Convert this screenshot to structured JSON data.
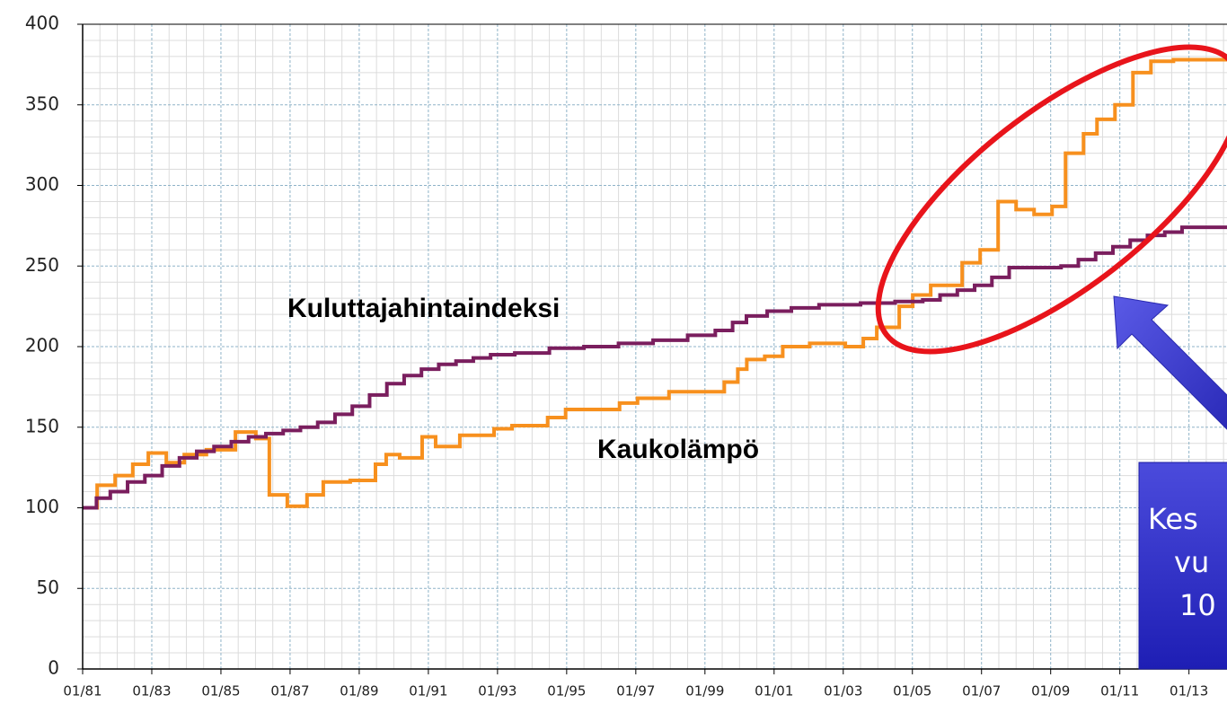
{
  "chart_data": {
    "type": "step-line",
    "xlim": [
      1981,
      2014.1
    ],
    "xticks": [
      {
        "value": 1981,
        "label": "01/81"
      },
      {
        "value": 1983,
        "label": "01/83"
      },
      {
        "value": 1985,
        "label": "01/85"
      },
      {
        "value": 1987,
        "label": "01/87"
      },
      {
        "value": 1989,
        "label": "01/89"
      },
      {
        "value": 1991,
        "label": "01/91"
      },
      {
        "value": 1993,
        "label": "01/93"
      },
      {
        "value": 1995,
        "label": "01/95"
      },
      {
        "value": 1997,
        "label": "01/97"
      },
      {
        "value": 1999,
        "label": "01/99"
      },
      {
        "value": 2001,
        "label": "01/01"
      },
      {
        "value": 2003,
        "label": "01/03"
      },
      {
        "value": 2005,
        "label": "01/05"
      },
      {
        "value": 2007,
        "label": "01/07"
      },
      {
        "value": 2009,
        "label": "01/09"
      },
      {
        "value": 2011,
        "label": "01/11"
      },
      {
        "value": 2013,
        "label": "01/13"
      }
    ],
    "ylim": [
      0,
      400
    ],
    "yticks": [
      0,
      50,
      100,
      150,
      200,
      250,
      300,
      350,
      400
    ],
    "grid": true,
    "series": [
      {
        "name": "Kuluttajahintaindeksi",
        "color": "#7a1e5e",
        "x": [
          1981.0,
          1981.4,
          1981.8,
          1982.3,
          1982.8,
          1983.3,
          1983.8,
          1984.3,
          1984.8,
          1985.3,
          1985.8,
          1986.3,
          1986.8,
          1987.3,
          1987.8,
          1988.3,
          1988.8,
          1989.3,
          1989.8,
          1990.3,
          1990.8,
          1991.3,
          1991.8,
          1992.3,
          1992.8,
          1993.5,
          1994.5,
          1995.5,
          1996.5,
          1997.5,
          1998.5,
          1999.3,
          1999.8,
          2000.2,
          2000.8,
          2001.5,
          2002.3,
          2003.5,
          2004.5,
          2005.3,
          2005.8,
          2006.3,
          2006.8,
          2007.3,
          2007.8,
          2008.5,
          2009.3,
          2009.8,
          2010.3,
          2010.8,
          2011.3,
          2011.8,
          2012.3,
          2012.8
        ],
        "values": [
          100,
          106,
          110,
          116,
          120,
          126,
          131,
          135,
          138,
          141,
          144,
          146,
          148,
          150,
          153,
          158,
          163,
          170,
          177,
          182,
          186,
          189,
          191,
          193,
          195,
          196,
          199,
          200,
          202,
          204,
          207,
          210,
          215,
          219,
          222,
          224,
          226,
          227,
          228,
          229,
          232,
          235,
          238,
          243,
          249,
          249,
          250,
          254,
          258,
          262,
          266,
          269,
          271,
          274
        ]
      },
      {
        "name": "Kaukolämpö",
        "color": "#f7901e",
        "x": [
          1981.0,
          1981.42,
          1981.94,
          1982.45,
          1982.9,
          1983.42,
          1983.94,
          1984.58,
          1985.42,
          1986.01,
          1986.4,
          1986.92,
          1987.49,
          1987.96,
          1988.74,
          1989.47,
          1989.78,
          1990.17,
          1990.82,
          1991.21,
          1991.91,
          1992.9,
          1993.42,
          1994.45,
          1994.97,
          1996.53,
          1997.05,
          1997.96,
          1999.56,
          1999.95,
          2000.21,
          2000.73,
          2001.25,
          2002.03,
          2003.06,
          2003.58,
          2003.97,
          2004.62,
          2005.01,
          2005.53,
          2006.44,
          2006.96,
          2007.48,
          2008.0,
          2008.52,
          2009.04,
          2009.43,
          2009.95,
          2010.34,
          2010.86,
          2011.38,
          2011.9,
          2012.55
        ],
        "values": [
          100,
          114,
          120,
          127,
          134,
          128,
          133,
          136,
          147,
          143,
          108,
          101,
          108,
          116,
          117,
          127,
          133,
          131,
          144,
          138,
          145,
          149,
          151,
          156,
          161,
          165,
          168,
          172,
          178,
          186,
          192,
          194,
          200,
          202,
          200,
          205,
          212,
          225,
          232,
          238,
          252,
          260,
          290,
          285,
          282,
          287,
          320,
          332,
          341,
          350,
          370,
          377,
          378
        ]
      }
    ],
    "callout_lines": [
      "Kes",
      "vu",
      "10"
    ]
  }
}
